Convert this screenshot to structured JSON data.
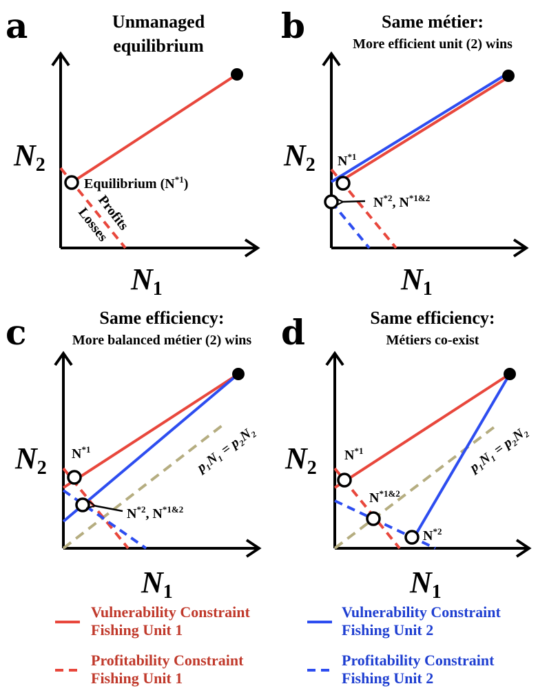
{
  "panels": {
    "a": {
      "letter": "a",
      "title_line1": "Unmanaged",
      "title_line2": "equilibrium",
      "equilibrium_label": "Equilibrium (N",
      "equilibrium_sup": "*1",
      "equilibrium_close": ")",
      "profits_label": "Profits",
      "losses_label": "Losses"
    },
    "b": {
      "letter": "b",
      "title": "Same métier:",
      "subtitle": "More efficient unit (2) wins",
      "n1_label": "N",
      "n1_sup": "*1",
      "n2_label": "N",
      "n2_sup": "*2",
      "n12_label": ", N",
      "n12_sup": "*1&2"
    },
    "c": {
      "letter": "c",
      "title": "Same efficiency:",
      "subtitle": "More balanced métier (2) wins",
      "n1_label": "N",
      "n1_sup": "*1",
      "n2_label": "N",
      "n2_sup": "*2",
      "n12_label": ", N",
      "n12_sup": "*1&2",
      "balance_label": "p₁N₁ = p₂N₂"
    },
    "d": {
      "letter": "d",
      "title": "Same efficiency:",
      "subtitle": "Métiers co-exist",
      "n1_label": "N",
      "n1_sup": "*1",
      "n12_label": "N",
      "n12_sup": "*1&2",
      "n2_label": "N",
      "n2_sup": "*2",
      "balance_label": "p₁N₁ = p₂N₂"
    }
  },
  "axes": {
    "x_label": "N",
    "x_sub": "1",
    "y_label": "N",
    "y_sub": "2"
  },
  "legend": {
    "vuln_unit1_line1": "Vulnerability Constraint",
    "vuln_unit1_line2": "Fishing Unit 1",
    "vuln_unit2_line1": "Vulnerability Constraint",
    "vuln_unit2_line2": "Fishing Unit 2",
    "prof_unit1_line1": "Profitability Constraint",
    "prof_unit1_line2": "Fishing Unit 1",
    "prof_unit2_line1": "Profitability Constraint",
    "prof_unit2_line2": "Fishing Unit 2"
  },
  "colors": {
    "unit1": "#e8473c",
    "unit2": "#2d4df0",
    "balance": "#b5ad80"
  }
}
